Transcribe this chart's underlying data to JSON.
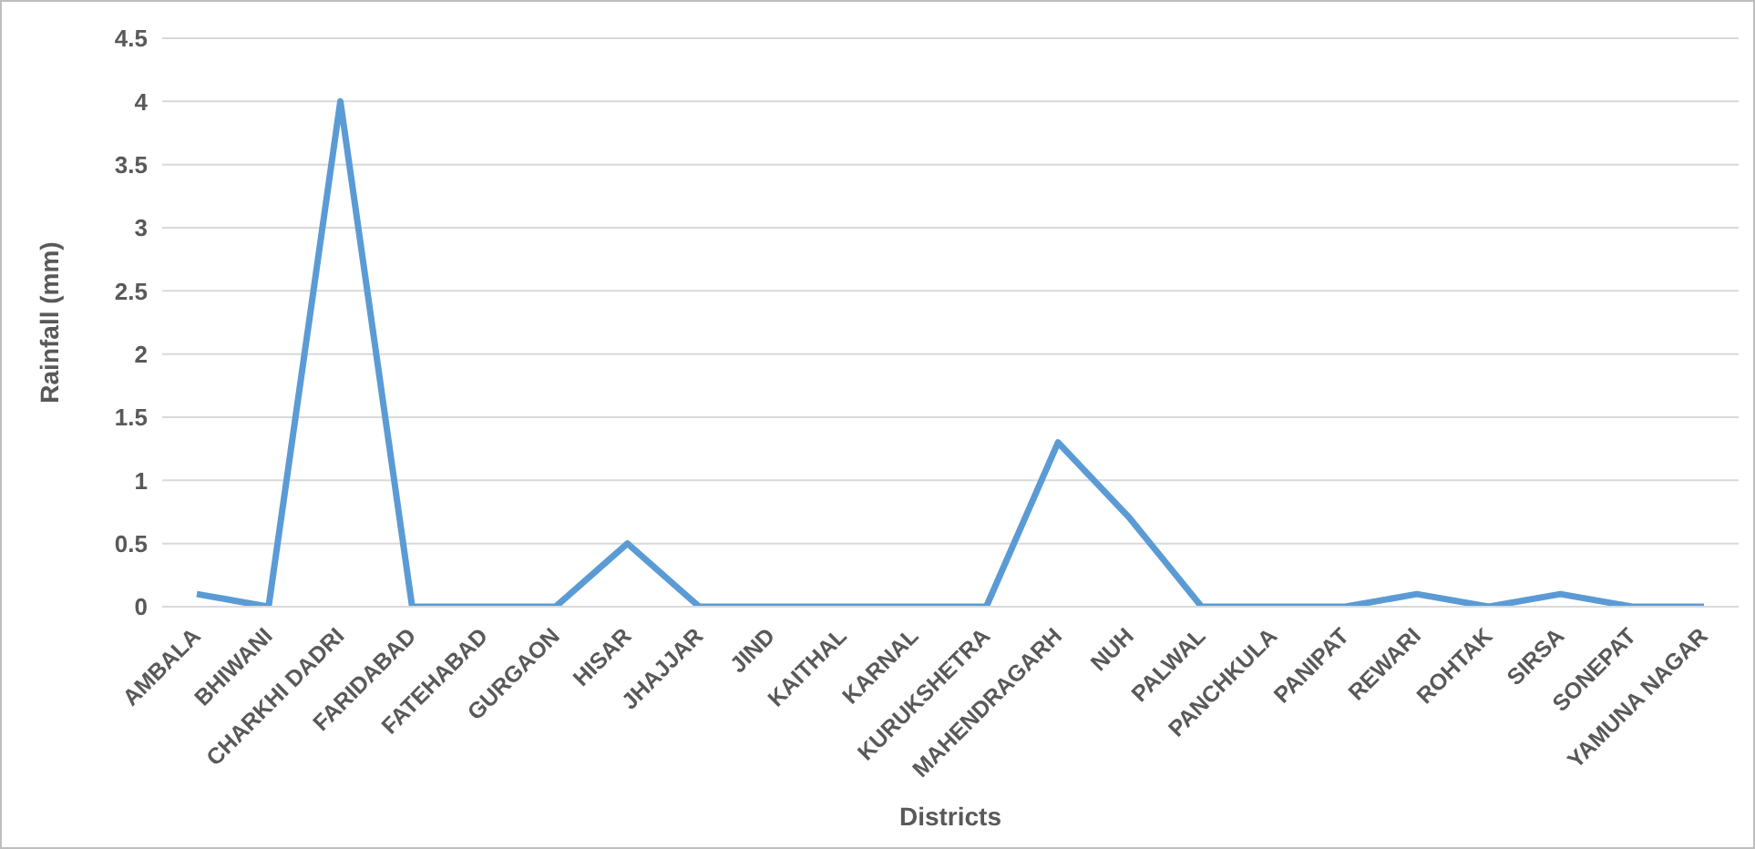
{
  "chart_data": {
    "type": "line",
    "xlabel": "Districts",
    "ylabel": "Rainfall (mm)",
    "categories": [
      "AMBALA",
      "BHIWANI",
      "CHARKHI DADRI",
      "FARIDABAD",
      "FATEHABAD",
      "GURGAON",
      "HISAR",
      "JHAJJAR",
      "JIND",
      "KAITHAL",
      "KARNAL",
      "KURUKSHETRA",
      "MAHENDRAGARH",
      "NUH",
      "PALWAL",
      "PANCHKULA",
      "PANIPAT",
      "REWARI",
      "ROHTAK",
      "SIRSA",
      "SONEPAT",
      "YAMUNA NAGAR"
    ],
    "series": [
      {
        "color": "#5b9bd5",
        "values": [
          0.1,
          0,
          4,
          0,
          0,
          0,
          0.5,
          0,
          0,
          0,
          0,
          0,
          1.3,
          0.7,
          0,
          0,
          0,
          0.1,
          0,
          0.1,
          0,
          0
        ]
      }
    ],
    "ylim": [
      0,
      4.5
    ],
    "yticks": [
      0,
      0.5,
      1,
      1.5,
      2,
      2.5,
      3,
      3.5,
      4,
      4.5
    ],
    "grid": "y",
    "legend": false,
    "marker": "none",
    "line_style": "solid"
  }
}
